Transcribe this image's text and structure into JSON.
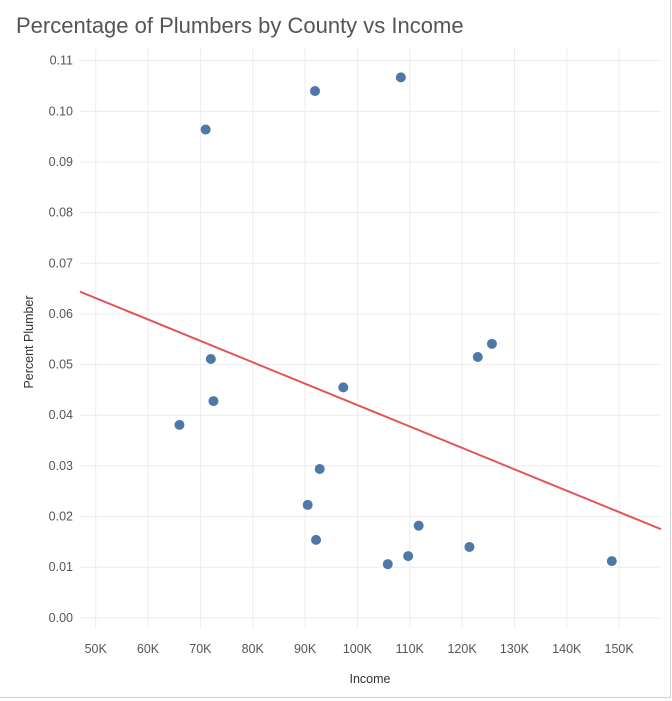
{
  "chart_data": {
    "type": "scatter",
    "title": "Percentage of Plumbers by County vs Income",
    "xlabel": "Income",
    "ylabel": "Percent Plumber",
    "x_ticks": [
      {
        "value": 50000,
        "label": "50K"
      },
      {
        "value": 60000,
        "label": "60K"
      },
      {
        "value": 70000,
        "label": "70K"
      },
      {
        "value": 80000,
        "label": "80K"
      },
      {
        "value": 90000,
        "label": "90K"
      },
      {
        "value": 100000,
        "label": "100K"
      },
      {
        "value": 110000,
        "label": "110K"
      },
      {
        "value": 120000,
        "label": "120K"
      },
      {
        "value": 130000,
        "label": "130K"
      },
      {
        "value": 140000,
        "label": "140K"
      },
      {
        "value": 150000,
        "label": "150K"
      }
    ],
    "y_ticks": [
      {
        "value": 0.0,
        "label": "0.00"
      },
      {
        "value": 0.01,
        "label": "0.01"
      },
      {
        "value": 0.02,
        "label": "0.02"
      },
      {
        "value": 0.03,
        "label": "0.03"
      },
      {
        "value": 0.04,
        "label": "0.04"
      },
      {
        "value": 0.05,
        "label": "0.05"
      },
      {
        "value": 0.06,
        "label": "0.06"
      },
      {
        "value": 0.07,
        "label": "0.07"
      },
      {
        "value": 0.08,
        "label": "0.08"
      },
      {
        "value": 0.09,
        "label": "0.09"
      },
      {
        "value": 0.1,
        "label": "0.10"
      },
      {
        "value": 0.11,
        "label": "0.11"
      }
    ],
    "xlim": [
      47000,
      158000
    ],
    "ylim": [
      -0.002,
      0.1125
    ],
    "grid": true,
    "points": [
      {
        "x": 66000,
        "y": 0.0381
      },
      {
        "x": 71000,
        "y": 0.0964
      },
      {
        "x": 72000,
        "y": 0.0511
      },
      {
        "x": 72500,
        "y": 0.0428
      },
      {
        "x": 90500,
        "y": 0.0223
      },
      {
        "x": 91900,
        "y": 0.104
      },
      {
        "x": 92100,
        "y": 0.0154
      },
      {
        "x": 92800,
        "y": 0.0294
      },
      {
        "x": 97300,
        "y": 0.0455
      },
      {
        "x": 105800,
        "y": 0.0106
      },
      {
        "x": 108300,
        "y": 0.1067
      },
      {
        "x": 109700,
        "y": 0.0122
      },
      {
        "x": 111700,
        "y": 0.0182
      },
      {
        "x": 121400,
        "y": 0.014
      },
      {
        "x": 123000,
        "y": 0.0515
      },
      {
        "x": 125700,
        "y": 0.0541
      },
      {
        "x": 148600,
        "y": 0.0112
      }
    ],
    "trend_line": {
      "x": [
        47000,
        158000
      ],
      "y": [
        0.0644,
        0.0175
      ]
    },
    "colors": {
      "points": "#4e79a7",
      "trend": "#e15759",
      "grid": "#ececec"
    }
  }
}
